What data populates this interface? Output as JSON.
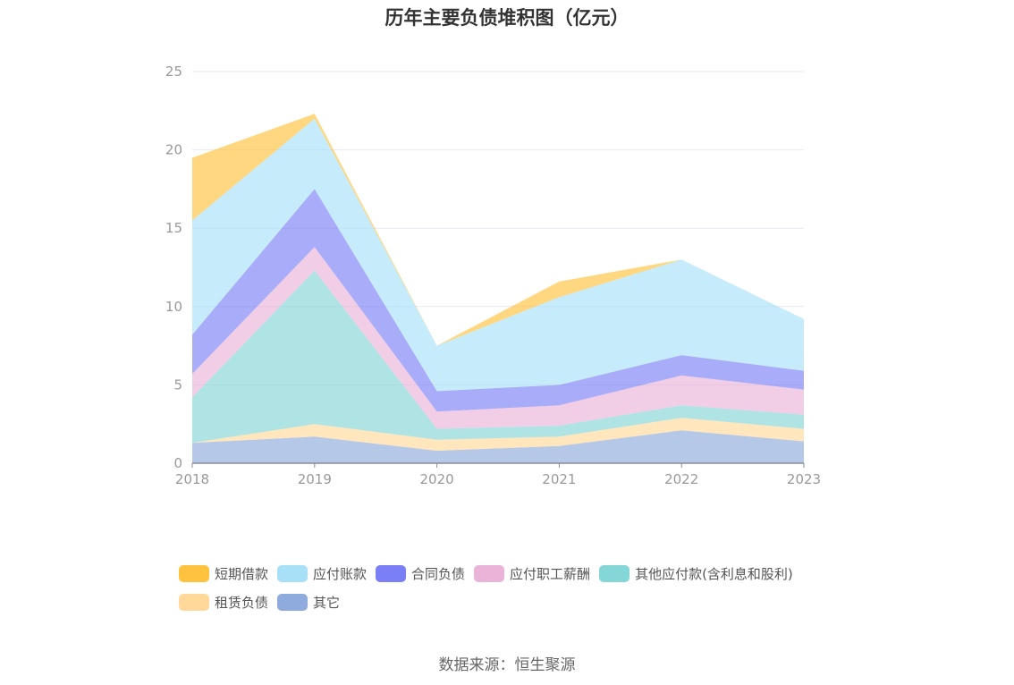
{
  "chart_data": {
    "type": "area",
    "title": "历年主要负债堆积图（亿元）",
    "x": [
      "2018",
      "2019",
      "2020",
      "2021",
      "2022",
      "2023"
    ],
    "ylim": [
      0,
      25
    ],
    "yticks": [
      0,
      5,
      10,
      15,
      20,
      25
    ],
    "stacked": true,
    "grid": true,
    "legend_position": "bottom",
    "series": [
      {
        "name": "其它",
        "color": "#8faadc",
        "values": [
          1.3,
          1.7,
          0.8,
          1.1,
          2.1,
          1.4
        ]
      },
      {
        "name": "租赁负债",
        "color": "#ffd89a",
        "values": [
          0.0,
          0.8,
          0.7,
          0.6,
          0.8,
          0.8
        ]
      },
      {
        "name": "其他应付款(含利息和股利)",
        "color": "#85d6d6",
        "values": [
          2.9,
          9.8,
          0.7,
          0.7,
          0.8,
          0.9
        ]
      },
      {
        "name": "应付职工薪酬",
        "color": "#eab4d8",
        "values": [
          1.5,
          1.5,
          1.1,
          1.3,
          1.9,
          1.6
        ]
      },
      {
        "name": "合同负债",
        "color": "#7b7ff5",
        "values": [
          2.5,
          3.7,
          1.3,
          1.3,
          1.3,
          1.2
        ]
      },
      {
        "name": "应付账款",
        "color": "#a8e0f8",
        "values": [
          7.3,
          4.5,
          2.9,
          5.6,
          6.1,
          3.3
        ]
      },
      {
        "name": "短期借款",
        "color": "#ffc23e",
        "values": [
          4.0,
          0.3,
          0.0,
          1.0,
          0.0,
          0.0
        ]
      }
    ]
  },
  "legend_order": [
    "短期借款",
    "应付账款",
    "合同负债",
    "应付职工薪酬",
    "其他应付款(含利息和股利)",
    "租赁负债",
    "其它"
  ],
  "source": "数据来源：恒生聚源"
}
